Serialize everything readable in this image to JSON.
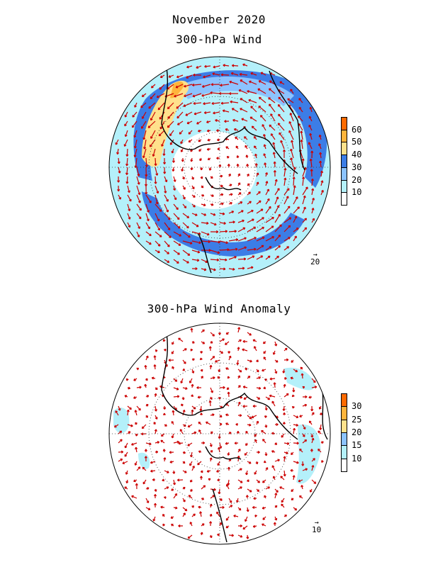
{
  "header": {
    "title_line1": "November 2020",
    "title_line2": "300-hPa Wind",
    "title_anomaly": "300-hPa Wind Anomaly"
  },
  "panels": [
    {
      "id": "wind",
      "colorbar": {
        "labels": [
          "60",
          "50",
          "40",
          "30",
          "20",
          "10"
        ],
        "colors": [
          "#ff6a00",
          "#ffb43c",
          "#ffe18c",
          "#3c7de6",
          "#8cc3ff",
          "#b4f0fa",
          "#ffffff"
        ]
      },
      "ref_vector_label": "20"
    },
    {
      "id": "anomaly",
      "colorbar": {
        "labels": [
          "30",
          "25",
          "20",
          "15",
          "10"
        ],
        "colors": [
          "#ff6a00",
          "#ffb43c",
          "#ffe18c",
          "#8cc3ff",
          "#b4f0fa",
          "#ffffff"
        ]
      },
      "ref_vector_label": "10"
    }
  ],
  "styles": {
    "vector_color": "#cc0000",
    "coast_color": "#000000",
    "fill_colors": {
      "light_blue": "#b4f0fa",
      "mid_blue": "#8cc3ff",
      "dark_blue": "#3c7de6",
      "yellow": "#ffe18c",
      "orange": "#ffb43c"
    }
  }
}
